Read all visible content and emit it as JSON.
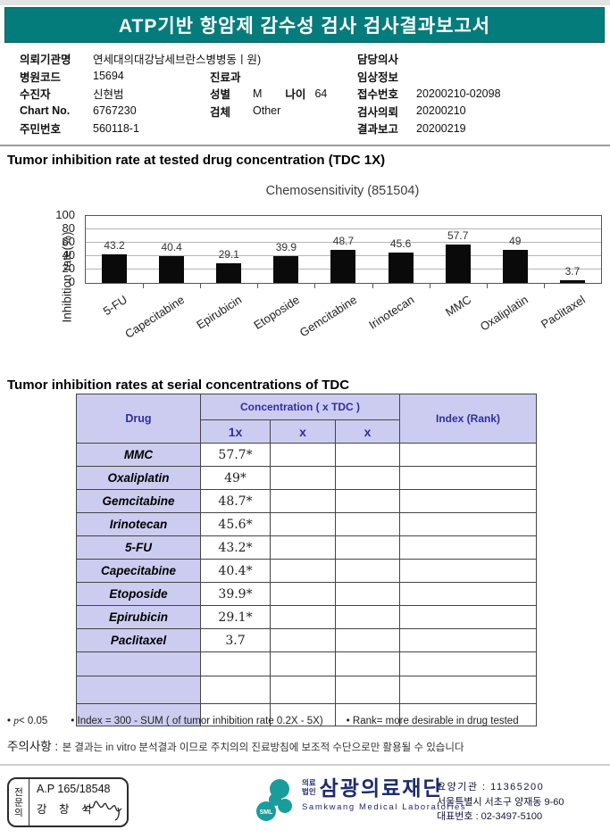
{
  "header": {
    "title": "ATP기반 항암제 감수성 검사 검사결과보고서",
    "bg_color": "#047c7c"
  },
  "info": {
    "org_label": "의뢰기관명",
    "org_value": "연세대의대강남세브란스병병동ㅣ원)",
    "hosp_code_label": "병원코드",
    "hosp_code": "15694",
    "patient_label": "수진자",
    "patient": "신현범",
    "chart_label": "Chart No.",
    "chart_no": "6767230",
    "jumin_label": "주민번호",
    "jumin": "560118-1",
    "dept_label": "진료과",
    "dept": "",
    "sex_label": "성별",
    "sex": "M",
    "age_label": "나이",
    "age": "64",
    "specimen_label": "검체",
    "specimen": "Other",
    "doctor_label": "담당의사",
    "doctor": "",
    "clinical_label": "임상정보",
    "clinical": "",
    "receipt_label": "접수번호",
    "receipt_no": "20200210-02098",
    "request_label": "검사의뢰",
    "request_date": "20200210",
    "report_label": "결과보고",
    "report_date": "20200219"
  },
  "section1_title": "Tumor inhibition rate at tested drug concentration (TDC 1X)",
  "section2_title": "Tumor inhibition rates at serial concentrations of TDC",
  "chart_data": {
    "type": "bar",
    "title": "Chemosensitivity (851504)",
    "ylabel": "Inhibition rate(%)",
    "xlabel": "",
    "categories": [
      "5-FU",
      "Capecitabine",
      "Epirubicin",
      "Etoposide",
      "Gemcitabine",
      "Irinotecan",
      "MMC",
      "Oxaliplatin",
      "Paclitaxel"
    ],
    "values": [
      43.2,
      40.4,
      29.1,
      39.9,
      48.7,
      45.6,
      57.7,
      49,
      3.7
    ],
    "data_labels": [
      "43.2",
      "40.4",
      "29.1",
      "39.9",
      "48.7",
      "45.6",
      "57.7",
      "49",
      "3.7"
    ],
    "ylim": [
      0,
      100
    ],
    "yticks": [
      0,
      20,
      40,
      60,
      80,
      100
    ],
    "grid": true,
    "bar_color": "#0a0a0a",
    "legend_position": "none"
  },
  "table": {
    "header": {
      "drug": "Drug",
      "concentration": "Concentration ( x TDC )",
      "sub1": "1x",
      "sub2": "x",
      "sub3": "x",
      "index": "Index (Rank)"
    },
    "rows": [
      {
        "drug": "MMC",
        "x1": "57.7*",
        "x2": "",
        "x3": "",
        "index": ""
      },
      {
        "drug": "Oxaliplatin",
        "x1": "49*",
        "x2": "",
        "x3": "",
        "index": ""
      },
      {
        "drug": "Gemcitabine",
        "x1": "48.7*",
        "x2": "",
        "x3": "",
        "index": ""
      },
      {
        "drug": "Irinotecan",
        "x1": "45.6*",
        "x2": "",
        "x3": "",
        "index": ""
      },
      {
        "drug": "5-FU",
        "x1": "43.2*",
        "x2": "",
        "x3": "",
        "index": ""
      },
      {
        "drug": "Capecitabine",
        "x1": "40.4*",
        "x2": "",
        "x3": "",
        "index": ""
      },
      {
        "drug": "Etoposide",
        "x1": "39.9*",
        "x2": "",
        "x3": "",
        "index": ""
      },
      {
        "drug": "Epirubicin",
        "x1": "29.1*",
        "x2": "",
        "x3": "",
        "index": ""
      },
      {
        "drug": "Paclitaxel",
        "x1": "3.7",
        "x2": "",
        "x3": "",
        "index": ""
      },
      {
        "drug": "",
        "x1": "",
        "x2": "",
        "x3": "",
        "index": "",
        "h": 26
      },
      {
        "drug": "",
        "x1": "",
        "x2": "",
        "x3": "",
        "index": "",
        "h": 30
      },
      {
        "drug": "",
        "x1": "",
        "x2": "",
        "x3": "",
        "index": "",
        "h": 24
      }
    ],
    "header_bg": "#ccccf0",
    "header_text_color": "#2f2f9d"
  },
  "notes": {
    "note1_bullet": "•",
    "note1_p": "p",
    "note1_rest": "< 0.05",
    "note2": "• Index = 300 - SUM ( of tumor inhibition rate 0.2X  -  5X)",
    "note3": "• Rank= more desirable in drug tested",
    "caution_label": "주의사항 :",
    "caution_text": "본 결과는 in vitro 분석결과 이므로 주치의의 진료방침에 보조적 수단으로만 활용될 수 있습니다"
  },
  "footer": {
    "stamp": {
      "side_label": "전문의",
      "line1": "A.P 165/18548",
      "line2": "강 창 석"
    },
    "logo": {
      "sml": "SML",
      "org_type_line1": "의료",
      "org_type_line2": "법인",
      "org_name": "삼광의료재단",
      "org_eng": "Samkwang Medical Laboratories",
      "teal": "#1b9c9c"
    },
    "contact": {
      "line1": "요양기관 : 11365200",
      "line2": "서울특별시 서초구 양재동 9-60",
      "line3": "대표번호 : 02-3497-5100"
    }
  }
}
